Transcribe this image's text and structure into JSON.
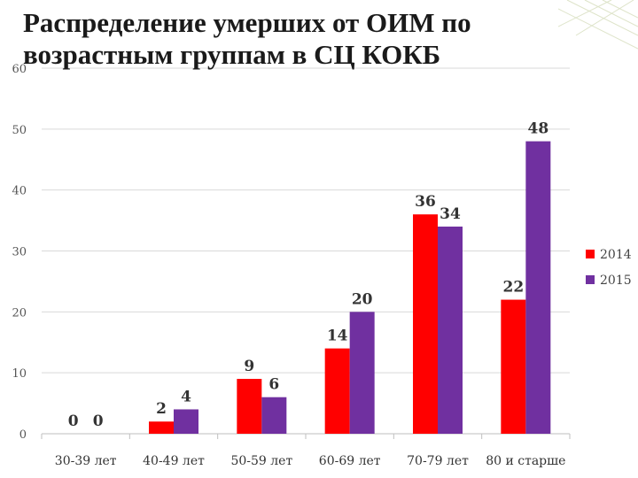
{
  "slide": {
    "title": "Распределение умерших от ОИМ по возрастным группам в СЦ КОКБ"
  },
  "colors": {
    "series_2014": "#ff0000",
    "series_2015": "#7030a0",
    "grid": "#d9d9d9",
    "axis": "#bfbfbf",
    "decoration": "#dde3c8"
  },
  "chart_data": {
    "type": "bar",
    "title": "",
    "xlabel": "",
    "ylabel": "",
    "ylim": [
      0,
      60
    ],
    "yticks": [
      0,
      10,
      20,
      30,
      40,
      50,
      60
    ],
    "grid": true,
    "legend_position": "right",
    "categories": [
      "30-39 лет",
      "40-49 лет",
      "50-59 лет",
      "60-69 лет",
      "70-79 лет",
      "80 и старше"
    ],
    "series": [
      {
        "name": "2014",
        "values": [
          0,
          2,
          9,
          14,
          36,
          22
        ]
      },
      {
        "name": "2015",
        "values": [
          0,
          4,
          6,
          20,
          34,
          48
        ]
      }
    ]
  }
}
